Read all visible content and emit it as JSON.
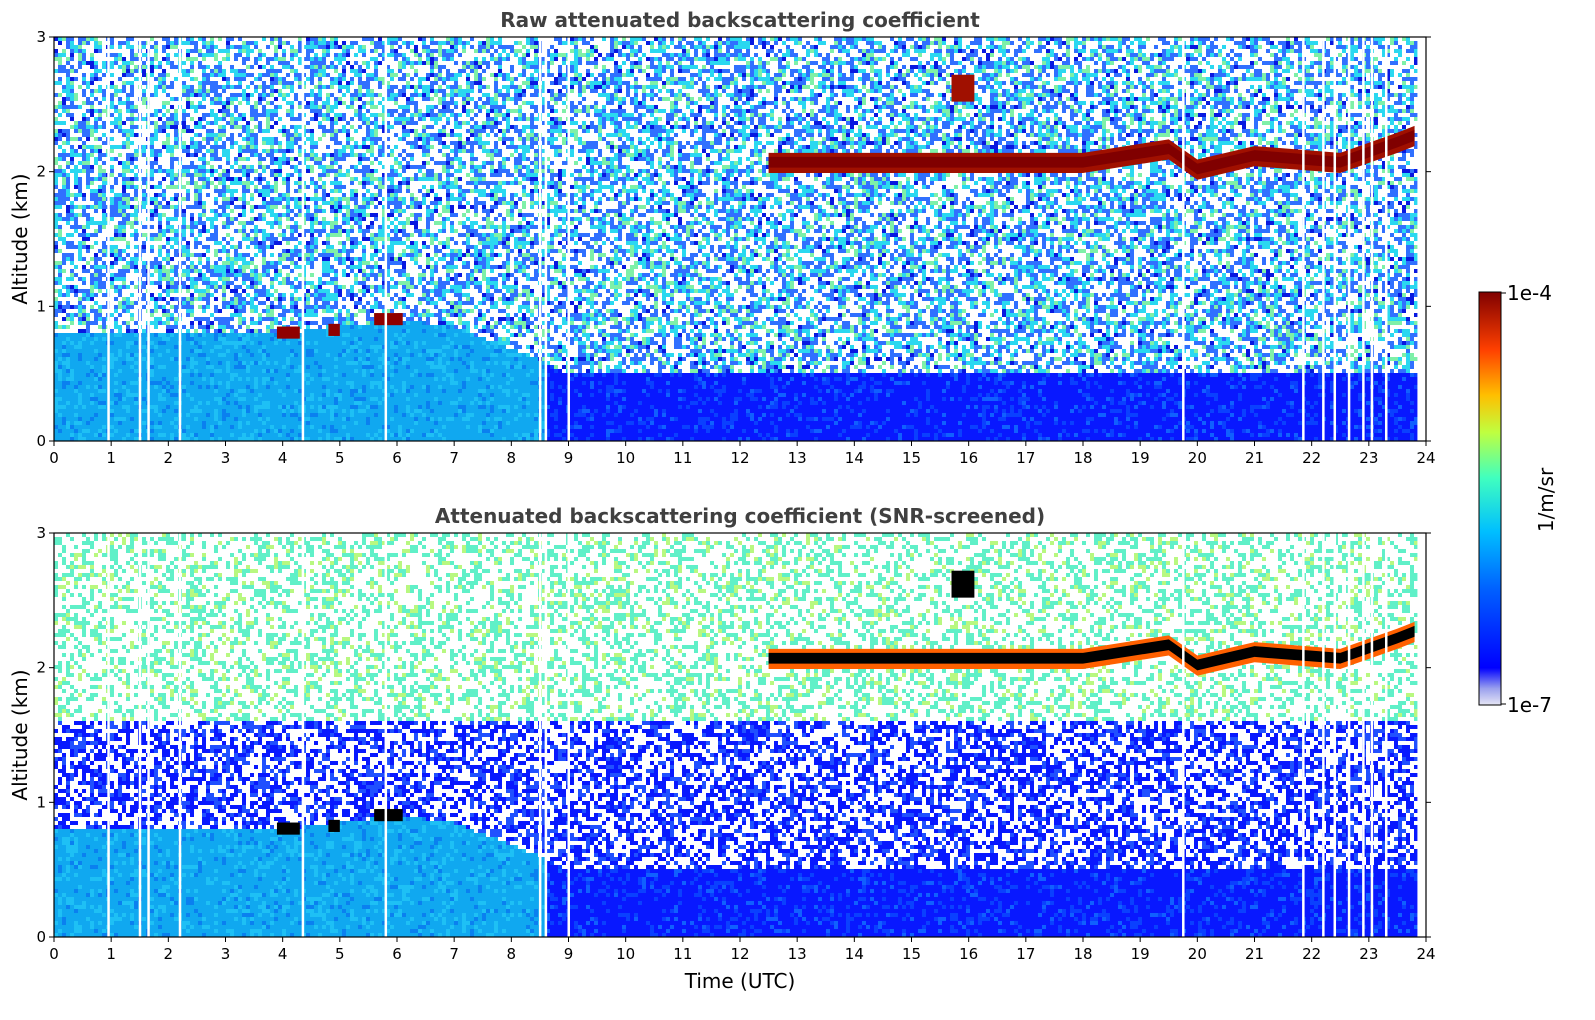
{
  "chart_data": [
    {
      "type": "heatmap",
      "title": "Raw attenuated backscattering coefficient",
      "xlabel": "",
      "ylabel": "Altitude (km)",
      "xlim": [
        0,
        24
      ],
      "ylim": [
        0,
        3
      ],
      "xticks": [
        "0",
        "1",
        "2",
        "3",
        "4",
        "5",
        "6",
        "7",
        "8",
        "9",
        "10",
        "11",
        "12",
        "13",
        "14",
        "15",
        "16",
        "17",
        "18",
        "19",
        "20",
        "21",
        "22",
        "23",
        "24"
      ],
      "yticks": [
        "0",
        "1",
        "2",
        "3"
      ],
      "features": {
        "boundary_layer_top_km": [
          [
            0,
            0.8
          ],
          [
            4,
            0.8
          ],
          [
            6,
            0.9
          ],
          [
            7,
            0.85
          ],
          [
            8.5,
            0.6
          ],
          [
            9,
            0.5
          ],
          [
            12,
            0.5
          ],
          [
            18,
            0.5
          ],
          [
            24,
            0.5
          ]
        ],
        "low_cloud": [
          [
            3.9,
            4.3,
            0.78
          ],
          [
            4.8,
            5.0,
            0.8
          ],
          [
            5.6,
            6.1,
            0.88
          ]
        ],
        "cloud_layer_base_km": [
          [
            12.5,
            2.05
          ],
          [
            14,
            2.05
          ],
          [
            16,
            2.05
          ],
          [
            18,
            2.05
          ],
          [
            19.5,
            2.15
          ],
          [
            20,
            2.0
          ],
          [
            21,
            2.1
          ],
          [
            22.5,
            2.05
          ],
          [
            23.5,
            2.2
          ],
          [
            23.8,
            2.25
          ]
        ],
        "upper_cloud_patch": [
          [
            15.7,
            16.1,
            2.6
          ]
        ],
        "data_gaps_utc": [
          0.95,
          1.5,
          1.65,
          2.2,
          4.35,
          5.8,
          8.5,
          8.6,
          9.0,
          19.75,
          21.85,
          22.2,
          22.4,
          22.65,
          22.9,
          23.05,
          23.3
        ]
      }
    },
    {
      "type": "heatmap",
      "title": "Attenuated backscattering coefficient (SNR-screened)",
      "xlabel": "Time (UTC)",
      "ylabel": "Altitude (km)",
      "xlim": [
        0,
        24
      ],
      "ylim": [
        0,
        3
      ],
      "xticks": [
        "0",
        "1",
        "2",
        "3",
        "4",
        "5",
        "6",
        "7",
        "8",
        "9",
        "10",
        "11",
        "12",
        "13",
        "14",
        "15",
        "16",
        "17",
        "18",
        "19",
        "20",
        "21",
        "22",
        "23",
        "24"
      ],
      "yticks": [
        "0",
        "1",
        "2",
        "3"
      ],
      "features": {
        "screened_noise_band_km": [
          0.85,
          1.6
        ],
        "cloud_core_color": "#000000"
      }
    }
  ],
  "colorbar": {
    "label": "1/m/sr",
    "top_label": "1e-4",
    "bottom_label": "1e-7",
    "colormap": "jet",
    "stops": [
      "#e6e6f5",
      "#0000ff",
      "#0060ff",
      "#00bfff",
      "#40ffbf",
      "#bfff40",
      "#ffbf00",
      "#ff4000",
      "#800000"
    ]
  }
}
